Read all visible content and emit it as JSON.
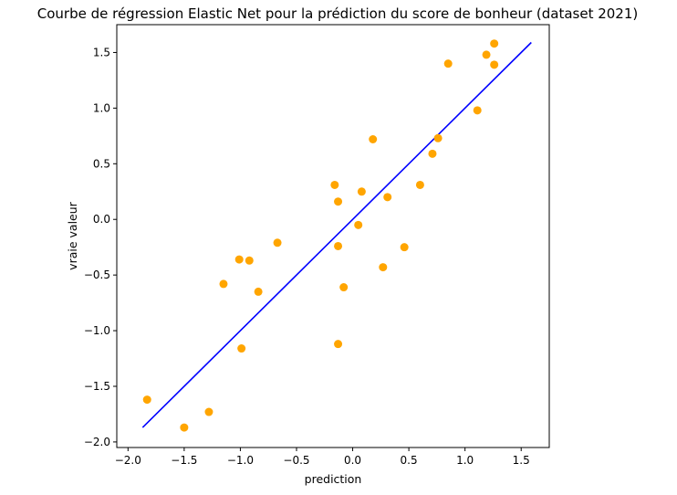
{
  "chart_data": {
    "type": "scatter",
    "title": "Courbe de régression Elastic Net pour la prédiction du score de bonheur (dataset 2021)",
    "xlabel": "prediction",
    "ylabel": "vraie valeur",
    "xlim": [
      -2.1,
      1.75
    ],
    "ylim": [
      -2.05,
      1.75
    ],
    "grid": false,
    "x_ticks": [
      -2.0,
      -1.5,
      -1.0,
      -0.5,
      0.0,
      0.5,
      1.0,
      1.5
    ],
    "x_tick_labels": [
      "−2.0",
      "−1.5",
      "−1.0",
      "−0.5",
      "0.0",
      "0.5",
      "1.0",
      "1.5"
    ],
    "y_ticks": [
      -2.0,
      -1.5,
      -1.0,
      -0.5,
      0.0,
      0.5,
      1.0,
      1.5
    ],
    "y_tick_labels": [
      "−2.0",
      "−1.5",
      "−1.0",
      "−0.5",
      "0.0",
      "0.5",
      "1.0",
      "1.5"
    ],
    "line": {
      "x": [
        -1.87,
        1.59
      ],
      "y": [
        -1.87,
        1.59
      ],
      "color": "#0000ff"
    },
    "points_color": "#ffa500",
    "points": [
      {
        "x": -1.83,
        "y": -1.62
      },
      {
        "x": -1.5,
        "y": -1.87
      },
      {
        "x": -1.28,
        "y": -1.73
      },
      {
        "x": -1.15,
        "y": -0.58
      },
      {
        "x": -1.01,
        "y": -0.36
      },
      {
        "x": -0.99,
        "y": -1.16
      },
      {
        "x": -0.92,
        "y": -0.37
      },
      {
        "x": -0.84,
        "y": -0.65
      },
      {
        "x": -0.67,
        "y": -0.21
      },
      {
        "x": -0.16,
        "y": 0.31
      },
      {
        "x": -0.13,
        "y": 0.16
      },
      {
        "x": -0.13,
        "y": -0.24
      },
      {
        "x": -0.13,
        "y": -1.12
      },
      {
        "x": -0.08,
        "y": -0.61
      },
      {
        "x": 0.05,
        "y": -0.05
      },
      {
        "x": 0.08,
        "y": 0.25
      },
      {
        "x": 0.18,
        "y": 0.72
      },
      {
        "x": 0.27,
        "y": -0.43
      },
      {
        "x": 0.31,
        "y": 0.2
      },
      {
        "x": 0.46,
        "y": -0.25
      },
      {
        "x": 0.6,
        "y": 0.31
      },
      {
        "x": 0.71,
        "y": 0.59
      },
      {
        "x": 0.76,
        "y": 0.73
      },
      {
        "x": 0.85,
        "y": 1.4
      },
      {
        "x": 1.11,
        "y": 0.98
      },
      {
        "x": 1.19,
        "y": 1.48
      },
      {
        "x": 1.26,
        "y": 1.58
      },
      {
        "x": 1.26,
        "y": 1.39
      }
    ]
  }
}
